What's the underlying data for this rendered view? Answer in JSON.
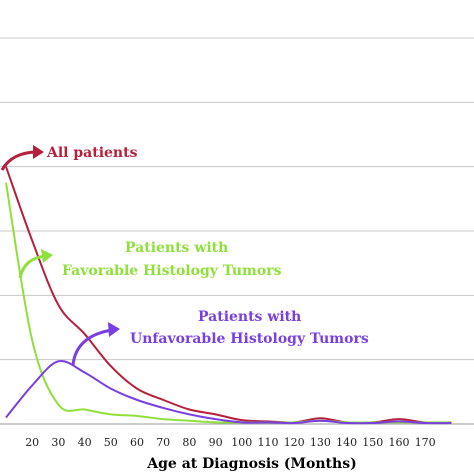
{
  "chart_data": {
    "type": "line",
    "xlabel": "Age at Diagnosis (Months)",
    "ylabel": "",
    "title": "",
    "grid": true,
    "x": [
      10,
      20,
      30,
      40,
      50,
      60,
      70,
      80,
      90,
      100,
      110,
      120,
      130,
      140,
      150,
      160,
      170,
      180
    ],
    "xticks": [
      "20",
      "30",
      "40",
      "50",
      "60",
      "70",
      "80",
      "90",
      "100",
      "110",
      "120",
      "130",
      "140",
      "150",
      "160",
      "170"
    ],
    "series": [
      {
        "name": "All patients",
        "color": "#b5213c",
        "values": [
          8.0,
          5.7,
          3.7,
          2.8,
          1.8,
          1.1,
          0.75,
          0.45,
          0.3,
          0.12,
          0.08,
          0.05,
          0.18,
          0.05,
          0.05,
          0.15,
          0.05,
          0.05
        ]
      },
      {
        "name": "Patients with Favorable Histology Tumors",
        "color": "#8fe03a",
        "values": [
          7.5,
          2.6,
          0.6,
          0.45,
          0.3,
          0.25,
          0.15,
          0.1,
          0.05,
          0.05,
          0.05,
          0.05,
          0.1,
          0.05,
          0.05,
          0.05,
          0.05,
          0.05
        ]
      },
      {
        "name": "Patients with Unfavorable Histology Tumors",
        "color": "#7a3fe0",
        "values": [
          0.2,
          1.2,
          1.95,
          1.6,
          1.1,
          0.75,
          0.5,
          0.3,
          0.15,
          0.05,
          0.05,
          0.03,
          0.1,
          0.03,
          0.03,
          0.08,
          0.03,
          0.03
        ]
      }
    ]
  },
  "annotations": [
    {
      "id": "all",
      "lines": [
        "All patients"
      ],
      "color": "#b5213c"
    },
    {
      "id": "favorable",
      "lines": [
        "Patients with",
        "Favorable Histology Tumors"
      ],
      "color": "#8fe03a"
    },
    {
      "id": "unfavorable",
      "lines": [
        "Patients with",
        "Unfavorable Histology Tumors"
      ],
      "color": "#7a3fe0"
    }
  ]
}
